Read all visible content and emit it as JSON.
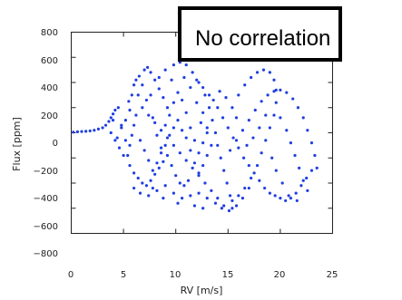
{
  "annotation": {
    "text": "No correlation"
  },
  "colors": {
    "series": "#1f3fe0",
    "axis": "#222222"
  },
  "chart_data": {
    "type": "scatter",
    "title": "",
    "xlabel": "RV [m/s]",
    "ylabel": "Flux [ppm]",
    "xlim": [
      0,
      25
    ],
    "ylim": [
      -800,
      800
    ],
    "xticks": [
      "0",
      "5",
      "10",
      "15",
      "20",
      "25"
    ],
    "yticks": [
      "800",
      "600",
      "400",
      "200",
      "0",
      "−200",
      "−400",
      "−600",
      "−800"
    ],
    "grid": false,
    "legend": "none",
    "series": [
      {
        "points": [
          [
            0.2,
            5
          ],
          [
            0.6,
            8
          ],
          [
            1.0,
            10
          ],
          [
            1.4,
            12
          ],
          [
            1.8,
            15
          ],
          [
            2.2,
            20
          ],
          [
            2.6,
            30
          ],
          [
            3.0,
            40
          ],
          [
            3.3,
            60
          ],
          [
            3.6,
            90
          ],
          [
            3.8,
            120
          ],
          [
            4.0,
            150
          ],
          [
            4.2,
            180
          ],
          [
            4.5,
            200
          ],
          [
            4.0,
            100
          ],
          [
            3.8,
            0
          ],
          [
            4.2,
            -60
          ],
          [
            4.6,
            -120
          ],
          [
            5.0,
            -180
          ],
          [
            4.8,
            60
          ],
          [
            5.5,
            250
          ],
          [
            6.0,
            380
          ],
          [
            6.5,
            450
          ],
          [
            7.0,
            500
          ],
          [
            7.3,
            520
          ],
          [
            7.6,
            480
          ],
          [
            8.0,
            420
          ],
          [
            8.4,
            350
          ],
          [
            8.8,
            280
          ],
          [
            9.2,
            200
          ],
          [
            9.8,
            540
          ],
          [
            10.4,
            560
          ],
          [
            11.0,
            540
          ],
          [
            11.6,
            480
          ],
          [
            12.2,
            400
          ],
          [
            12.8,
            300
          ],
          [
            13.2,
            200
          ],
          [
            13.5,
            100
          ],
          [
            13.8,
            0
          ],
          [
            14.0,
            -100
          ],
          [
            14.3,
            -200
          ],
          [
            14.6,
            -300
          ],
          [
            14.9,
            -400
          ],
          [
            15.2,
            -500
          ],
          [
            15.4,
            -600
          ],
          [
            15.1,
            -620
          ],
          [
            14.6,
            -580
          ],
          [
            14.0,
            -520
          ],
          [
            13.4,
            -460
          ],
          [
            12.8,
            -400
          ],
          [
            12.2,
            -340
          ],
          [
            11.6,
            -280
          ],
          [
            11.0,
            -220
          ],
          [
            10.4,
            -160
          ],
          [
            9.8,
            -100
          ],
          [
            9.2,
            -40
          ],
          [
            8.6,
            20
          ],
          [
            8.0,
            80
          ],
          [
            7.4,
            140
          ],
          [
            6.8,
            200
          ],
          [
            6.2,
            140
          ],
          [
            6.0,
            60
          ],
          [
            5.8,
            -20
          ],
          [
            5.6,
            -100
          ],
          [
            5.4,
            -180
          ],
          [
            5.6,
            -260
          ],
          [
            6.0,
            -320
          ],
          [
            6.4,
            -360
          ],
          [
            6.8,
            -400
          ],
          [
            7.2,
            -420
          ],
          [
            7.6,
            -380
          ],
          [
            8.0,
            -330
          ],
          [
            8.4,
            -280
          ],
          [
            8.8,
            -230
          ],
          [
            9.2,
            -180
          ],
          [
            9.6,
            -260
          ],
          [
            10.0,
            -340
          ],
          [
            10.4,
            -400
          ],
          [
            10.8,
            -420
          ],
          [
            11.2,
            -380
          ],
          [
            5.2,
            100
          ],
          [
            5.6,
            180
          ],
          [
            6.4,
            300
          ],
          [
            7.2,
            260
          ],
          [
            7.8,
            120
          ],
          [
            8.2,
            -20
          ],
          [
            8.6,
            -120
          ],
          [
            9.0,
            60
          ],
          [
            9.4,
            140
          ],
          [
            9.8,
            240
          ],
          [
            10.2,
            320
          ],
          [
            10.6,
            260
          ],
          [
            11.0,
            160
          ],
          [
            11.4,
            40
          ],
          [
            11.8,
            -60
          ],
          [
            12.2,
            -160
          ],
          [
            12.6,
            -80
          ],
          [
            13.0,
            40
          ],
          [
            12.6,
            160
          ],
          [
            12.0,
            240
          ],
          [
            6.6,
            -60
          ],
          [
            7.0,
            -140
          ],
          [
            7.4,
            -220
          ],
          [
            7.8,
            -300
          ],
          [
            8.2,
            -240
          ],
          [
            8.6,
            -160
          ],
          [
            9.0,
            -100
          ],
          [
            9.4,
            -20
          ],
          [
            9.8,
            40
          ],
          [
            10.2,
            100
          ],
          [
            10.6,
            20
          ],
          [
            11.0,
            -40
          ],
          [
            11.4,
            -140
          ],
          [
            11.8,
            -240
          ],
          [
            12.2,
            -320
          ],
          [
            12.6,
            -260
          ],
          [
            13.0,
            -180
          ],
          [
            13.4,
            -100
          ],
          [
            13.0,
            0
          ],
          [
            12.4,
            80
          ],
          [
            14.0,
            200
          ],
          [
            14.5,
            120
          ],
          [
            15.0,
            40
          ],
          [
            15.5,
            -40
          ],
          [
            16.0,
            -120
          ],
          [
            16.5,
            -200
          ],
          [
            17.0,
            -260
          ],
          [
            17.5,
            -320
          ],
          [
            18.0,
            -380
          ],
          [
            18.5,
            -440
          ],
          [
            19.0,
            -480
          ],
          [
            19.5,
            -500
          ],
          [
            20.0,
            -520
          ],
          [
            20.5,
            -540
          ],
          [
            21.0,
            -520
          ],
          [
            21.5,
            -480
          ],
          [
            22.0,
            -420
          ],
          [
            22.5,
            -360
          ],
          [
            23.0,
            -300
          ],
          [
            23.5,
            -280
          ],
          [
            23.3,
            -180
          ],
          [
            23.0,
            -80
          ],
          [
            22.6,
            20
          ],
          [
            22.2,
            120
          ],
          [
            21.7,
            200
          ],
          [
            21.2,
            270
          ],
          [
            20.6,
            320
          ],
          [
            20.0,
            340
          ],
          [
            19.4,
            330
          ],
          [
            18.8,
            300
          ],
          [
            18.2,
            250
          ],
          [
            17.6,
            180
          ],
          [
            17.0,
            100
          ],
          [
            16.4,
            20
          ],
          [
            15.8,
            -60
          ],
          [
            15.2,
            -140
          ],
          [
            16.0,
            300
          ],
          [
            16.6,
            380
          ],
          [
            17.2,
            440
          ],
          [
            17.8,
            480
          ],
          [
            18.4,
            500
          ],
          [
            19.0,
            480
          ],
          [
            19.4,
            420
          ],
          [
            19.6,
            340
          ],
          [
            19.6,
            240
          ],
          [
            19.4,
            140
          ],
          [
            19.0,
            40
          ],
          [
            18.6,
            -60
          ],
          [
            18.2,
            -160
          ],
          [
            17.8,
            -260
          ],
          [
            17.2,
            -360
          ],
          [
            16.6,
            -440
          ],
          [
            16.0,
            -500
          ],
          [
            15.4,
            -540
          ],
          [
            16.8,
            -100
          ],
          [
            17.4,
            -40
          ],
          [
            18.0,
            40
          ],
          [
            18.6,
            140
          ],
          [
            20.0,
            120
          ],
          [
            20.6,
            20
          ],
          [
            21.0,
            -80
          ],
          [
            21.4,
            -180
          ],
          [
            21.8,
            -280
          ],
          [
            22.2,
            -380
          ],
          [
            22.6,
            -460
          ],
          [
            21.6,
            -540
          ],
          [
            20.8,
            -500
          ],
          [
            20.2,
            -400
          ],
          [
            19.6,
            -300
          ],
          [
            19.2,
            -200
          ],
          [
            4.4,
            -40
          ],
          [
            4.8,
            40
          ],
          [
            5.2,
            -60
          ],
          [
            5.8,
            300
          ],
          [
            6.2,
            420
          ],
          [
            6.8,
            380
          ],
          [
            7.6,
            300
          ],
          [
            8.4,
            440
          ],
          [
            9.0,
            500
          ],
          [
            9.6,
            420
          ],
          [
            10.8,
            440
          ],
          [
            11.4,
            360
          ],
          [
            12.0,
            420
          ],
          [
            12.6,
            360
          ],
          [
            13.2,
            300
          ],
          [
            13.6,
            260
          ],
          [
            14.2,
            330
          ],
          [
            14.8,
            280
          ],
          [
            15.4,
            200
          ],
          [
            15.8,
            120
          ],
          [
            6.0,
            -440
          ],
          [
            6.6,
            -480
          ],
          [
            7.4,
            -500
          ],
          [
            8.2,
            -460
          ],
          [
            9.0,
            -420
          ],
          [
            9.8,
            -480
          ],
          [
            10.6,
            -520
          ],
          [
            11.4,
            -500
          ],
          [
            12.2,
            -480
          ],
          [
            13.0,
            -520
          ],
          [
            13.8,
            -560
          ],
          [
            14.4,
            -600
          ],
          [
            15.8,
            -580
          ],
          [
            16.4,
            -520
          ],
          [
            17.0,
            -440
          ],
          [
            12.6,
            -600
          ],
          [
            11.8,
            -580
          ],
          [
            10.2,
            -560
          ],
          [
            8.8,
            -520
          ],
          [
            7.8,
            -440
          ]
        ]
      }
    ]
  }
}
